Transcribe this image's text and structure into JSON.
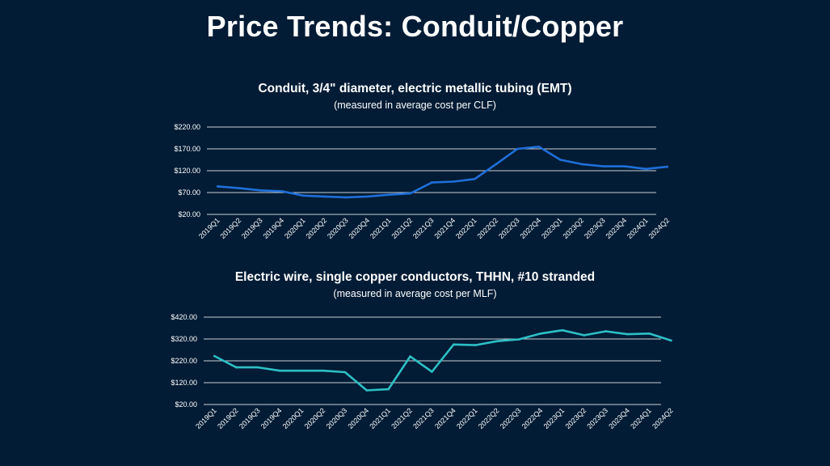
{
  "slide": {
    "title": "Price Trends: Conduit/Copper"
  },
  "chart_data": [
    {
      "type": "line",
      "title": "Conduit, 3/4\" diameter, electric metallic tubing (EMT)",
      "subtitle": "(measured in average cost per CLF)",
      "color": "#1f6fd8",
      "categories": [
        "2019Q1",
        "2019Q2",
        "2019Q3",
        "2019Q4",
        "2020Q1",
        "2020Q2",
        "2020Q3",
        "2020Q4",
        "2021Q1",
        "2021Q2",
        "2021Q3",
        "2021Q4",
        "2022Q1",
        "2022Q2",
        "2022Q3",
        "2022Q4",
        "2023Q1",
        "2023Q2",
        "2023Q3",
        "2023Q4",
        "2024Q1",
        "2024Q2"
      ],
      "yticks": [
        "$20.00",
        "$70.00",
        "$120.00",
        "$170.00",
        "$220.00"
      ],
      "ylim": [
        20,
        220
      ],
      "grid": true,
      "values": [
        84,
        80,
        75,
        73,
        63,
        61,
        59,
        61,
        65,
        68,
        93,
        95,
        101,
        135,
        170,
        175,
        145,
        135,
        130,
        130,
        124,
        129
      ]
    },
    {
      "type": "line",
      "title": "Electric wire, single copper conductors, THHN, #10 stranded",
      "subtitle": "(measured in average cost per MLF)",
      "color": "#2dbfc4",
      "categories": [
        "2019Q1",
        "2019Q2",
        "2019Q3",
        "2019Q4",
        "2020Q1",
        "2020Q2",
        "2020Q3",
        "2020Q4",
        "2021Q1",
        "2021Q2",
        "2021Q3",
        "2021Q4",
        "2022Q1",
        "2022Q2",
        "2022Q3",
        "2022Q4",
        "2023Q1",
        "2023Q2",
        "2023Q3",
        "2023Q4",
        "2024Q1",
        "2024Q2"
      ],
      "yticks": [
        "$20.00",
        "$120.00",
        "$220.00",
        "$320.00",
        "$420.00"
      ],
      "ylim": [
        20,
        420
      ],
      "grid": true,
      "values": [
        242,
        190,
        190,
        175,
        175,
        175,
        168,
        85,
        90,
        240,
        170,
        295,
        292,
        310,
        318,
        345,
        360,
        337,
        355,
        342,
        345,
        313
      ]
    }
  ]
}
